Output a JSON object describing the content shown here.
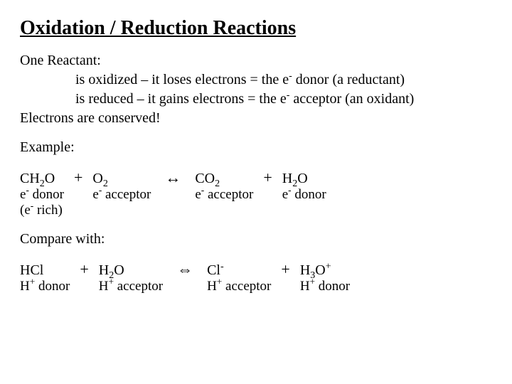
{
  "title": "Oxidation / Reduction Reactions",
  "intro": {
    "line1": "One Reactant:",
    "line2_pre": "is oxidized – it loses electrons = the e",
    "line2_post": " donor (a reductant)",
    "line3_pre": "is reduced – it gains electrons = the e",
    "line3_post": " acceptor (an oxidant)",
    "line4": "Electrons are conserved!"
  },
  "example_heading": "Example:",
  "eq1": {
    "r1": {
      "formula_pre": "CH",
      "sub1": "2",
      "formula_post": "O",
      "role_pre": "e",
      "role_post": " donor",
      "note_pre": "(e",
      "note_post": " rich)"
    },
    "r2": {
      "formula_pre": "O",
      "sub1": "2",
      "role_pre": "e",
      "role_post": " acceptor"
    },
    "p1": {
      "formula_pre": "CO",
      "sub1": "2",
      "role_pre": "e",
      "role_post": " acceptor"
    },
    "p2": {
      "formula_pre": "H",
      "sub1": "2",
      "formula_post": "O",
      "role_pre": "e",
      "role_post": " donor"
    },
    "plus": "+",
    "arrow": "↔"
  },
  "compare_heading": "Compare with:",
  "eq2": {
    "r1": {
      "formula": "HCl",
      "role_pre": "H",
      "role_post": " donor"
    },
    "r2": {
      "formula_pre": "H",
      "sub1": "2",
      "formula_post": "O",
      "role_pre": "H",
      "role_post": " acceptor"
    },
    "p1": {
      "formula_pre": "Cl",
      "role_pre": "H",
      "role_post": " acceptor"
    },
    "p2": {
      "formula_pre": "H",
      "sub1": "3",
      "formula_mid": "O",
      "role_pre": "H",
      "role_post": " donor"
    },
    "plus": "+",
    "arrow": "⇔"
  },
  "minus": "-",
  "plus_sup": "+"
}
